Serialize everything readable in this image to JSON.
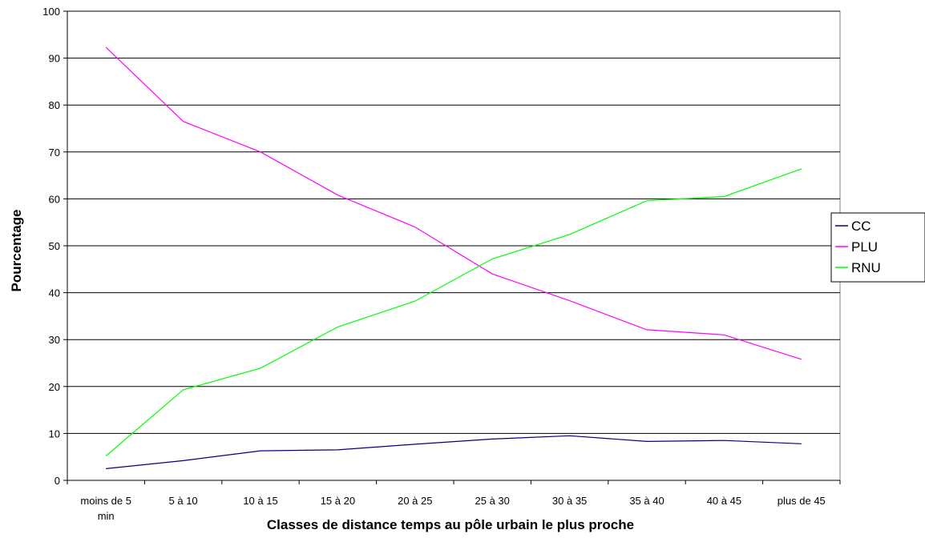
{
  "chart_data": {
    "type": "line",
    "title": "",
    "xlabel": "Classes de distance temps au pôle urbain le plus proche",
    "ylabel": "Pourcentage",
    "ylim": [
      0,
      100
    ],
    "yticks": [
      0,
      10,
      20,
      30,
      40,
      50,
      60,
      70,
      80,
      90,
      100
    ],
    "grid": true,
    "legend_position": "right",
    "categories": [
      [
        "moins de 5",
        "min"
      ],
      [
        "5 à 10"
      ],
      [
        "10 à 15"
      ],
      [
        "15 à 20"
      ],
      [
        "20 à 25"
      ],
      [
        "25 à 30"
      ],
      [
        "30 à 35"
      ],
      [
        "35 à 40"
      ],
      [
        "40 à 45"
      ],
      [
        "plus de 45"
      ]
    ],
    "series": [
      {
        "name": "CC",
        "color": "#000080",
        "values": [
          2.5,
          4.2,
          6.3,
          6.5,
          7.7,
          8.8,
          9.5,
          8.3,
          8.5,
          7.8
        ]
      },
      {
        "name": "PLU",
        "color": "#ff00ff",
        "values": [
          92.3,
          76.5,
          70.0,
          60.8,
          54.0,
          44.0,
          38.3,
          32.1,
          31.0,
          25.8
        ]
      },
      {
        "name": "RNU",
        "color": "#00ff00",
        "values": [
          5.2,
          19.3,
          23.9,
          32.7,
          38.2,
          47.2,
          52.4,
          59.6,
          60.5,
          66.4
        ]
      }
    ]
  }
}
